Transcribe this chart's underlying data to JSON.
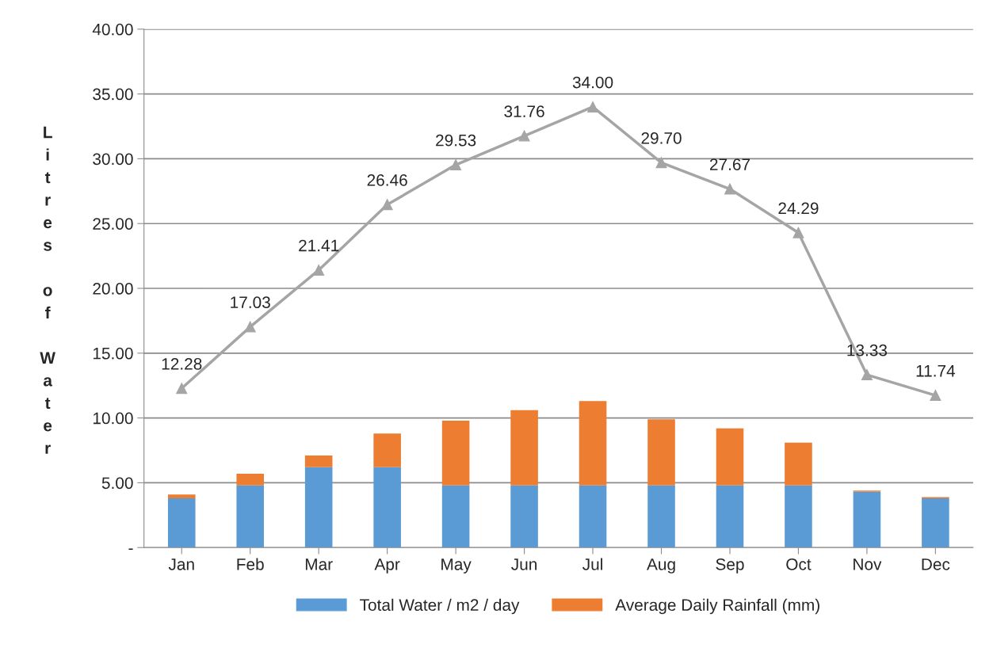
{
  "chart_data": {
    "type": "bar",
    "stacked": true,
    "ylabel": "Litres of Water",
    "categories": [
      "Jan",
      "Feb",
      "Mar",
      "Apr",
      "May",
      "Jun",
      "Jul",
      "Aug",
      "Sep",
      "Oct",
      "Nov",
      "Dec"
    ],
    "series": [
      {
        "name": "Total Water / m2 / day",
        "color": "#5b9bd5",
        "values": [
          3.8,
          4.8,
          6.2,
          6.2,
          4.8,
          4.8,
          4.8,
          4.8,
          4.8,
          4.8,
          4.3,
          3.8
        ]
      },
      {
        "name": "Average Daily Rainfall (mm)",
        "color": "#ed7d31",
        "values": [
          0.3,
          0.9,
          0.9,
          2.6,
          5.0,
          5.8,
          6.5,
          5.1,
          4.4,
          3.3,
          0.1,
          0.1
        ]
      },
      {
        "type": "line",
        "color": "#a5a5a5",
        "marker": "triangle",
        "data_labels": true,
        "values": [
          12.28,
          17.03,
          21.41,
          26.46,
          29.53,
          31.76,
          34.0,
          29.7,
          27.67,
          24.29,
          13.33,
          11.74
        ],
        "value_labels": [
          "12.28",
          "17.03",
          "21.41",
          "26.46",
          "29.53",
          "31.76",
          "34.00",
          "29.70",
          "27.67",
          "24.29",
          "13.33",
          "11.74"
        ]
      }
    ],
    "ylim": [
      0,
      40
    ],
    "yticks": [
      {
        "value": 0,
        "label": "-"
      },
      {
        "value": 5,
        "label": "5.00"
      },
      {
        "value": 10,
        "label": "10.00"
      },
      {
        "value": 15,
        "label": "15.00"
      },
      {
        "value": 20,
        "label": "20.00"
      },
      {
        "value": 25,
        "label": "25.00"
      },
      {
        "value": 30,
        "label": "30.00"
      },
      {
        "value": 35,
        "label": "35.00"
      },
      {
        "value": 40,
        "label": "40.00"
      }
    ],
    "grid": "y",
    "legend": "bottom"
  }
}
